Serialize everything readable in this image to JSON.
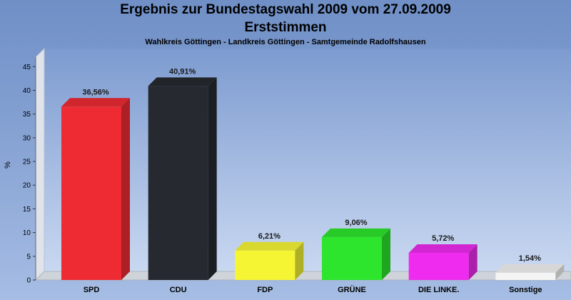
{
  "chart_data": {
    "type": "bar",
    "title": "Ergebnis zur Bundestagswahl 2009 vom 27.09.2009",
    "title_line2": "Erststimmen",
    "subtitle": "Wahlkreis Göttingen - Landkreis Göttingen - Samtgemeinde Radolfshausen",
    "ylabel": "%",
    "xlabel": "",
    "ylim": [
      0,
      47
    ],
    "yticks": [
      0,
      5,
      10,
      15,
      20,
      25,
      30,
      35,
      40,
      45
    ],
    "grid": false,
    "categories": [
      "SPD",
      "CDU",
      "FDP",
      "GRÜNE",
      "DIE LINKE.",
      "Sonstige"
    ],
    "values": [
      36.56,
      40.91,
      6.21,
      9.06,
      5.72,
      1.54
    ],
    "data_labels": [
      "36,56%",
      "40,91%",
      "6,21%",
      "9,06%",
      "5,72%",
      "1,54%"
    ],
    "colors": [
      "#ee2b33",
      "#26292f",
      "#f5f534",
      "#2de52d",
      "#ee2bee",
      "#f4f4f4"
    ]
  }
}
